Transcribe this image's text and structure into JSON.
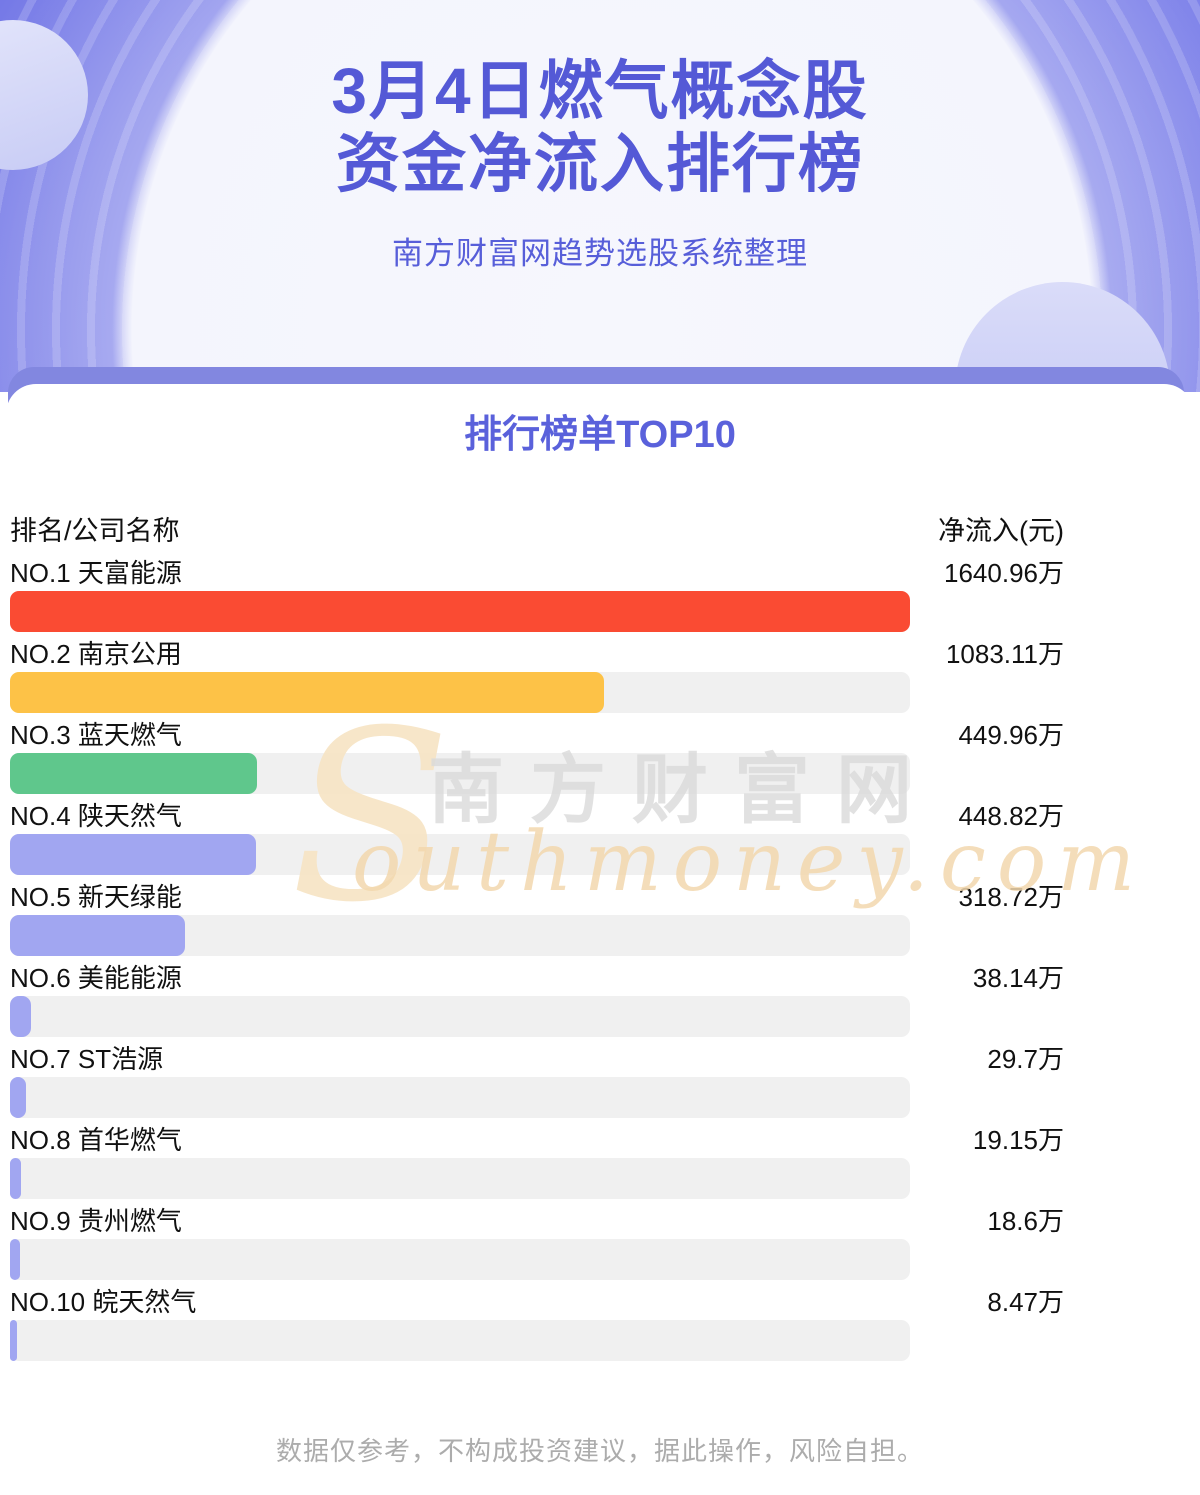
{
  "hero": {
    "title_line1": "3月4日燃气概念股",
    "title_line2": "资金净流入排行榜",
    "subtitle": "南方财富网趋势选股系统整理"
  },
  "ranking": {
    "heading_cn": "排行榜单",
    "heading_en": "TOP10",
    "col_company": "排名/公司名称",
    "col_value": "净流入(元)"
  },
  "watermark": {
    "initial": "S",
    "cn": "南方财富网",
    "en": "outhmoney.com"
  },
  "footer": {
    "disclaimer": "数据仅参考，不构成投资建议，据此操作，风险自担。"
  },
  "colors": {
    "accent_purple": "#5459D6",
    "band": "#8287E0",
    "hero_base": "#6468E6",
    "track": "#F0F0F0"
  },
  "chart_data": {
    "type": "bar",
    "orientation": "horizontal",
    "title": "排行榜单TOP10",
    "xlabel": "净流入(元)",
    "ylabel": "排名/公司名称",
    "unit": "万",
    "max_value": 1640.96,
    "grid": false,
    "legend": false,
    "categories": [
      "NO.1 天富能源",
      "NO.2 南京公用",
      "NO.3 蓝天燃气",
      "NO.4 陕天然气",
      "NO.5 新天绿能",
      "NO.6 美能能源",
      "NO.7 ST浩源",
      "NO.8 首华燃气",
      "NO.9 贵州燃气",
      "NO.10 皖天然气"
    ],
    "values": [
      1640.96,
      1083.11,
      449.96,
      448.82,
      318.72,
      38.14,
      29.7,
      19.15,
      18.6,
      8.47
    ],
    "value_labels": [
      "1640.96万",
      "1083.11万",
      "449.96万",
      "448.82万",
      "318.72万",
      "38.14万",
      "29.7万",
      "19.15万",
      "18.6万",
      "8.47万"
    ],
    "bar_colors": [
      "#FA4B33",
      "#FDC247",
      "#5FC78C",
      "#A1A6F1",
      "#A1A6F1",
      "#A1A6F1",
      "#A1A6F1",
      "#A1A6F1",
      "#A1A6F1",
      "#A1A6F1"
    ],
    "track_color": "#F0F0F0"
  }
}
